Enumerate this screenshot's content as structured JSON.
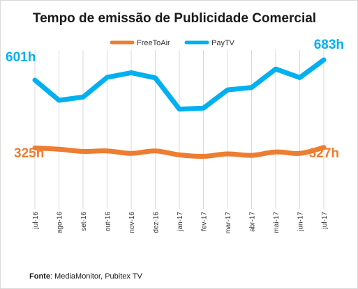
{
  "chart_data": {
    "type": "line",
    "title": "Tempo de emissão de Publicidade Comercial",
    "categories": [
      "jul-16",
      "ago-16",
      "set-16",
      "out-16",
      "nov-16",
      "dez-16",
      "jan-17",
      "fev-17",
      "mar-17",
      "abr-17",
      "mai-17",
      "jun-17",
      "jul-17"
    ],
    "series": [
      {
        "name": "FreeToAir",
        "color": "#ed7d31",
        "values": [
          325,
          320,
          311,
          313,
          303,
          313,
          297,
          291,
          301,
          295,
          309,
          303,
          327
        ]
      },
      {
        "name": "PayTV",
        "color": "#00b0f0",
        "values": [
          601,
          519,
          532,
          612,
          631,
          610,
          483,
          487,
          561,
          571,
          646,
          611,
          683
        ]
      }
    ],
    "ylim": [
      0,
      800
    ],
    "grid": "vertical",
    "legend": "top-center",
    "annotations": {
      "paytv_start": "601h",
      "paytv_end": "683h",
      "freetoair_start": "325h",
      "freetoair_end": "327h"
    }
  },
  "source": {
    "label": "Fonte",
    "text": ": MediaMonitor, Pubitex TV"
  }
}
